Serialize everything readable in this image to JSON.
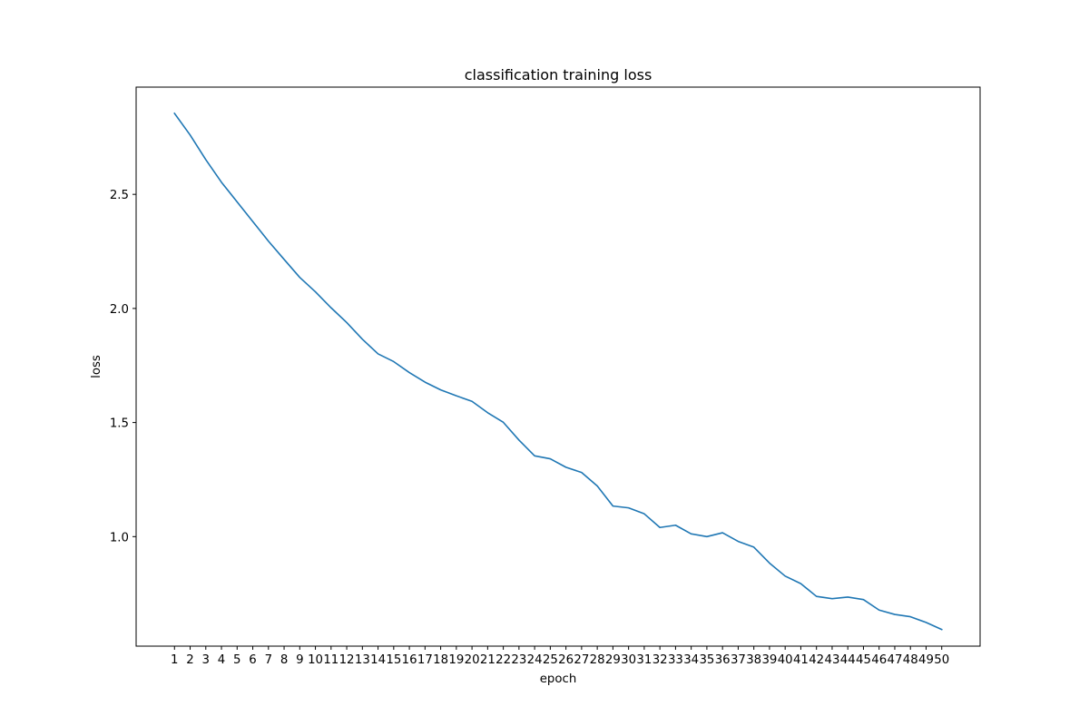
{
  "chart_data": {
    "type": "line",
    "title": "classification training loss",
    "xlabel": "epoch",
    "ylabel": "loss",
    "x": [
      1,
      2,
      3,
      4,
      5,
      6,
      7,
      8,
      9,
      10,
      11,
      12,
      13,
      14,
      15,
      16,
      17,
      18,
      19,
      20,
      21,
      22,
      23,
      24,
      25,
      26,
      27,
      28,
      29,
      30,
      31,
      32,
      33,
      34,
      35,
      36,
      37,
      38,
      39,
      40,
      41,
      42,
      43,
      44,
      45,
      46,
      47,
      48,
      49,
      50
    ],
    "xticks": [
      "1",
      "2",
      "3",
      "4",
      "5",
      "6",
      "7",
      "8",
      "9",
      "10",
      "11",
      "12",
      "13",
      "14",
      "15",
      "16",
      "17",
      "18",
      "19",
      "20",
      "21",
      "22",
      "23",
      "24",
      "25",
      "26",
      "27",
      "28",
      "29",
      "30",
      "31",
      "32",
      "33",
      "34",
      "35",
      "36",
      "37",
      "38",
      "39",
      "40",
      "41",
      "42",
      "43",
      "44",
      "45",
      "46",
      "47",
      "48",
      "49",
      "50"
    ],
    "yticks": [
      1.0,
      1.5,
      2.0,
      2.5
    ],
    "xlim": [
      -1.45,
      52.45
    ],
    "ylim": [
      0.52,
      2.97
    ],
    "series": [
      {
        "color": "#1f77b4",
        "values": [
          2.855,
          2.76,
          2.652,
          2.553,
          2.467,
          2.381,
          2.295,
          2.215,
          2.136,
          2.073,
          2.003,
          1.938,
          1.865,
          1.801,
          1.767,
          1.719,
          1.677,
          1.643,
          1.617,
          1.593,
          1.543,
          1.501,
          1.423,
          1.354,
          1.341,
          1.304,
          1.281,
          1.222,
          1.134,
          1.126,
          1.1,
          1.04,
          1.05,
          1.012,
          1.0,
          1.017,
          0.979,
          0.954,
          0.884,
          0.827,
          0.794,
          0.738,
          0.728,
          0.735,
          0.724,
          0.678,
          0.659,
          0.649,
          0.624,
          0.593
        ]
      }
    ],
    "grid": false,
    "legend": "none"
  }
}
